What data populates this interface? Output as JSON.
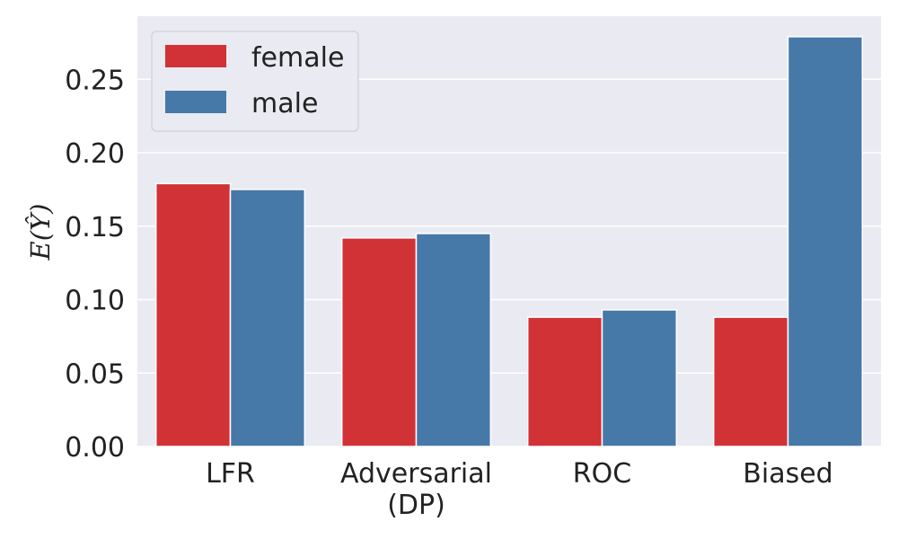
{
  "chart_data": {
    "type": "bar",
    "categories": [
      "LFR",
      "Adversarial\n(DP)",
      "ROC",
      "Biased"
    ],
    "series": [
      {
        "name": "female",
        "color": "#d03236",
        "values": [
          0.179,
          0.142,
          0.088,
          0.088
        ]
      },
      {
        "name": "male",
        "color": "#4679a8",
        "values": [
          0.175,
          0.145,
          0.093,
          0.279
        ]
      }
    ],
    "ylabel": "E(Ŷ)",
    "ylim": [
      0,
      0.293
    ],
    "yticks": [
      "0.00",
      "0.05",
      "0.10",
      "0.15",
      "0.20",
      "0.25"
    ],
    "ytick_values": [
      0,
      0.05,
      0.1,
      0.15,
      0.2,
      0.25
    ],
    "grid": true,
    "legend_position": "top-left",
    "background": "#eaeaf2"
  }
}
